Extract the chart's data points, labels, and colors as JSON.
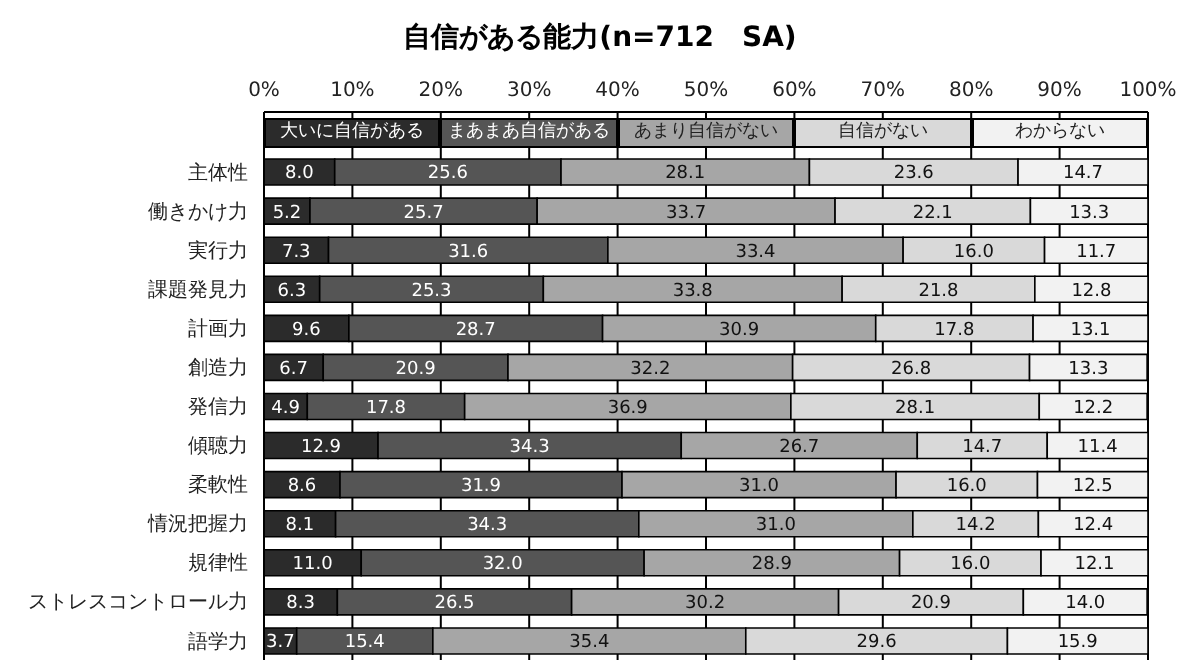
{
  "chart_data": {
    "type": "bar",
    "orientation": "horizontal",
    "stacked": true,
    "title": "自信がある能力(n=712　SA)",
    "categories": [
      "主体性",
      "働きかけ力",
      "実行力",
      "課題発見力",
      "計画力",
      "創造力",
      "発信力",
      "傾聴力",
      "柔軟性",
      "情況把握力",
      "規律性",
      "ストレスコントロール力",
      "語学力"
    ],
    "series": [
      {
        "name": "大いに自信がある",
        "color": "#2b2b2b",
        "values": [
          8.0,
          5.2,
          7.3,
          6.3,
          9.6,
          6.7,
          4.9,
          12.9,
          8.6,
          8.1,
          11.0,
          8.3,
          3.7
        ],
        "value_labels": [
          "8.0",
          "5.2",
          "7.3",
          "6.3",
          "9.6",
          "6.7",
          "4.9",
          "12.9",
          "8.6",
          "8.1",
          "11.0",
          "8.3",
          "3.7"
        ]
      },
      {
        "name": "まあまあ自信がある",
        "color": "#555555",
        "values": [
          25.6,
          25.7,
          31.6,
          25.3,
          28.7,
          20.9,
          17.8,
          34.3,
          31.9,
          34.3,
          32.0,
          26.5,
          15.4
        ],
        "value_labels": [
          "25.6",
          "25.7",
          "31.6",
          "25.3",
          "28.7",
          "20.9",
          "17.8",
          "34.3",
          "31.9",
          "34.3",
          "32.0",
          "26.5",
          "15.4"
        ]
      },
      {
        "name": "あまり自信がない",
        "color": "#a6a6a6",
        "values": [
          28.1,
          33.7,
          33.4,
          33.8,
          30.9,
          32.2,
          36.9,
          26.7,
          31.0,
          31.0,
          28.9,
          30.2,
          35.4
        ],
        "value_labels": [
          "28.1",
          "33.7",
          "33.4",
          "33.8",
          "30.9",
          "32.2",
          "36.9",
          "26.7",
          "31.0",
          "31.0",
          "28.9",
          "30.2",
          "35.4"
        ]
      },
      {
        "name": "自信がない",
        "color": "#d9d9d9",
        "values": [
          23.6,
          22.1,
          16.0,
          21.8,
          17.8,
          26.8,
          28.1,
          14.7,
          16.0,
          14.2,
          16.0,
          20.9,
          29.6
        ],
        "value_labels": [
          "23.6",
          "22.1",
          "16.0",
          "21.8",
          "17.8",
          "26.8",
          "28.1",
          "14.7",
          "16.0",
          "14.2",
          "16.0",
          "20.9",
          "29.6"
        ]
      },
      {
        "name": "わからない",
        "color": "#f2f2f2",
        "values": [
          14.7,
          13.3,
          11.7,
          12.8,
          13.1,
          13.3,
          12.2,
          11.4,
          12.5,
          12.4,
          12.1,
          14.0,
          15.9
        ],
        "value_labels": [
          "14.7",
          "13.3",
          "11.7",
          "12.8",
          "13.1",
          "13.3",
          "12.2",
          "11.4",
          "12.5",
          "12.4",
          "12.1",
          "14.0",
          "15.9"
        ]
      }
    ],
    "xlim": [
      0,
      100
    ],
    "xticks": [
      {
        "value": 0,
        "label": "0%"
      },
      {
        "value": 10,
        "label": "10%"
      },
      {
        "value": 20,
        "label": "20%"
      },
      {
        "value": 30,
        "label": "30%"
      },
      {
        "value": 40,
        "label": "40%"
      },
      {
        "value": 50,
        "label": "50%"
      },
      {
        "value": 60,
        "label": "60%"
      },
      {
        "value": 70,
        "label": "70%"
      },
      {
        "value": 80,
        "label": "80%"
      },
      {
        "value": 90,
        "label": "90%"
      },
      {
        "value": 100,
        "label": "100%"
      }
    ],
    "grid": "x",
    "legend": "top"
  }
}
